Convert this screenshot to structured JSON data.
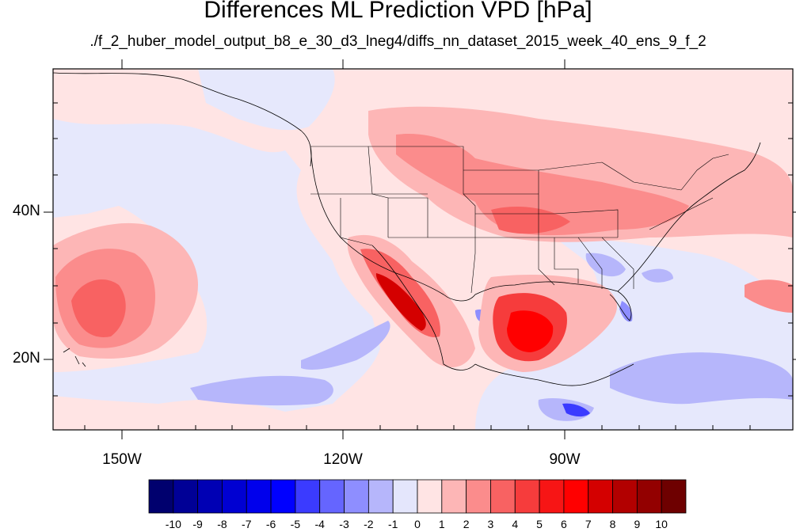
{
  "title": "Differences ML Prediction VPD [hPa]",
  "subtitle": "./f_2_huber_model_output_b8_e_30_d3_lneg4/diffs_nn_dataset_2015_week_40_ens_9_f_2",
  "lat_labels": [
    "40N",
    "20N"
  ],
  "lon_labels": [
    "150W",
    "120W",
    "90W"
  ],
  "colorbar": {
    "labels": [
      "-10",
      "-9",
      "-8",
      "-7",
      "-6",
      "-5",
      "-4",
      "-3",
      "-2",
      "-1",
      "0",
      "1",
      "2",
      "3",
      "4",
      "5",
      "6",
      "7",
      "8",
      "9",
      "10"
    ],
    "colors": [
      "#00006e",
      "#000096",
      "#0000b4",
      "#0000d2",
      "#0000ec",
      "#0000ff",
      "#3b3bff",
      "#6565ff",
      "#8e8eff",
      "#b6b6fb",
      "#e4e6fc",
      "#ffe4e4",
      "#fdb6b6",
      "#fb8c8c",
      "#f86262",
      "#f63c3c",
      "#f71515",
      "#ff0000",
      "#d40000",
      "#b20000",
      "#930000",
      "#6e0000"
    ]
  },
  "map": {
    "background_color": "#ffe4e4",
    "field": "VPD difference",
    "units": "hPa"
  }
}
